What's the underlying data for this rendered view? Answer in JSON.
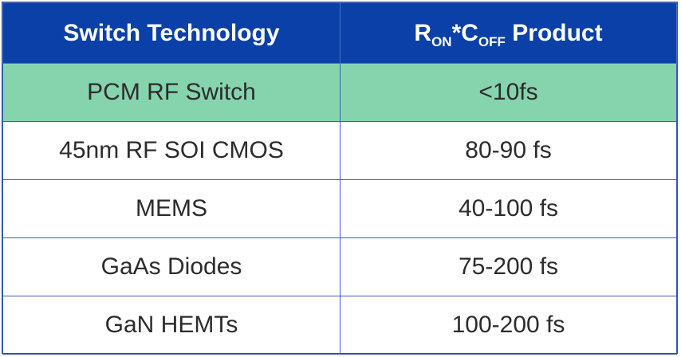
{
  "header": {
    "col1": "Switch Technology",
    "col2": {
      "r": "R",
      "r_sub": "ON",
      "star_c": "*C",
      "c_sub": "OFF",
      "rest": " Product"
    }
  },
  "rows": [
    {
      "technology": "PCM RF Switch",
      "product": "<10fs",
      "highlighted": true
    },
    {
      "technology": "45nm RF SOI CMOS",
      "product": "80-90 fs"
    },
    {
      "technology": "MEMS",
      "product": "40-100 fs"
    },
    {
      "technology": "GaAs Diodes",
      "product": "75-200 fs"
    },
    {
      "technology": "GaN HEMTs",
      "product": "100-200 fs"
    }
  ],
  "colors": {
    "header_bg": "#0b40a8",
    "highlight_bg": "#86d4ae",
    "border": "#3a5fb3"
  }
}
